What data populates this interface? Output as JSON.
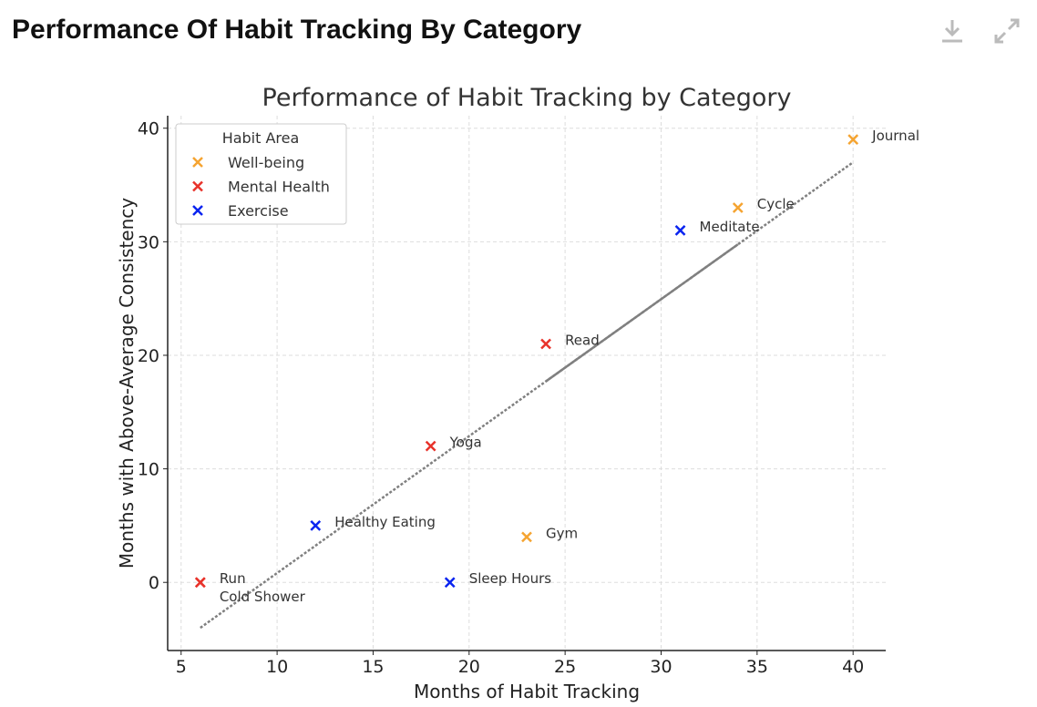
{
  "header": {
    "title": "Performance Of Habit Tracking By Category",
    "download_icon": "download-icon",
    "expand_icon": "expand-icon"
  },
  "chart_data": {
    "type": "scatter",
    "title": "Performance of Habit Tracking by Category",
    "xlabel": "Months of Habit Tracking",
    "ylabel": "Months with Above-Average Consistency",
    "xlim": [
      4.3,
      41.7
    ],
    "ylim": [
      -6,
      41.1
    ],
    "xticks": [
      5,
      10,
      15,
      20,
      25,
      30,
      35,
      40
    ],
    "yticks": [
      0,
      10,
      20,
      30,
      40
    ],
    "grid": true,
    "legend": {
      "title": "Habit Area",
      "placement": "top-left"
    },
    "series": [
      {
        "name": "Well-being",
        "color": "#f5a431",
        "points": [
          {
            "label": "Journal",
            "x": 40,
            "y": 39
          },
          {
            "label": "Cycle",
            "x": 34,
            "y": 33
          },
          {
            "label": "Gym",
            "x": 23,
            "y": 4
          }
        ]
      },
      {
        "name": "Mental Health",
        "color": "#e8322a",
        "points": [
          {
            "label": "Read",
            "x": 24,
            "y": 21
          },
          {
            "label": "Yoga",
            "x": 18,
            "y": 12
          },
          {
            "label": "Run",
            "x": 6,
            "y": 0
          },
          {
            "label": "Cold Shower",
            "x": 6,
            "y": 0
          }
        ]
      },
      {
        "name": "Exercise",
        "color": "#0a24f0",
        "points": [
          {
            "label": "Meditate",
            "x": 31,
            "y": 31
          },
          {
            "label": "Healthy Eating",
            "x": 12,
            "y": 5
          },
          {
            "label": "Sleep Hours",
            "x": 19,
            "y": 0
          }
        ]
      }
    ],
    "trendline": {
      "x": [
        6,
        40
      ],
      "y": [
        -4,
        37
      ],
      "color": "#808080"
    }
  }
}
